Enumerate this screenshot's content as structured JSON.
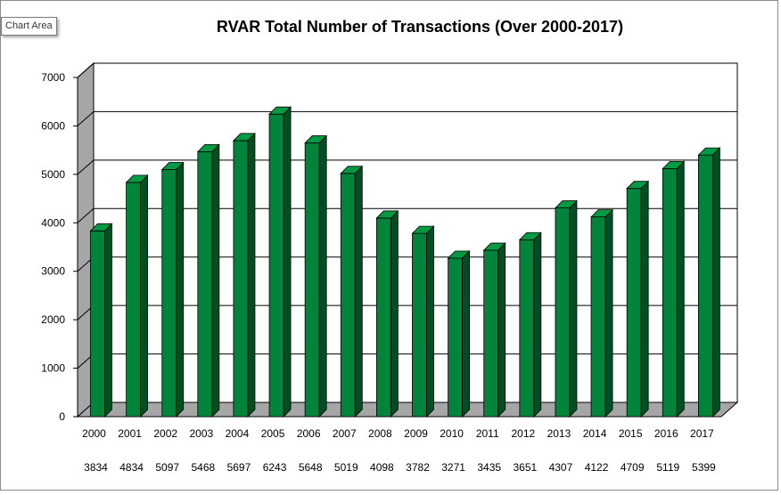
{
  "tooltip": {
    "label": "Chart Area"
  },
  "chart_data": {
    "type": "bar",
    "title": "RVAR Total Number of Transactions (Over 2000-2017)",
    "xlabel": "",
    "ylabel": "",
    "ylim": [
      0,
      7000
    ],
    "yticks": [
      "0",
      "1000",
      "2000",
      "3000",
      "4000",
      "5000",
      "6000",
      "7000"
    ],
    "grid": true,
    "legend": "none",
    "categories": [
      "2000",
      "2001",
      "2002",
      "2003",
      "2004",
      "2005",
      "2006",
      "2007",
      "2008",
      "2009",
      "2010",
      "2011",
      "2012",
      "2013",
      "2014",
      "2015",
      "2016",
      "2017"
    ],
    "values": [
      3834,
      4834,
      5097,
      5468,
      5697,
      6243,
      5648,
      5019,
      4098,
      3782,
      3271,
      3435,
      3651,
      4307,
      4122,
      4709,
      5119,
      5399
    ],
    "data_labels": [
      "3834",
      "4834",
      "5097",
      "5468",
      "5697",
      "6243",
      "5648",
      "5019",
      "4098",
      "3782",
      "3271",
      "3435",
      "3651",
      "4307",
      "4122",
      "4709",
      "5119",
      "5399"
    ],
    "colors": {
      "bar_front": "#00833a",
      "bar_side": "#004e22",
      "bar_top": "#009a45",
      "wall": "#a6a6a6",
      "grid": "#000000"
    }
  }
}
